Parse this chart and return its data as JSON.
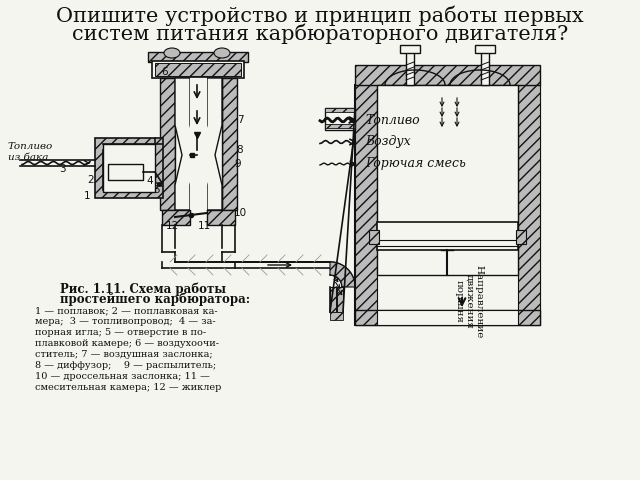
{
  "title_line1": "Опишите устройство и принцип работы первых",
  "title_line2": "систем питания карбюраторного двигателя?",
  "title_fontsize": 15,
  "title_color": "#111111",
  "bg_color": "#f5f5f0",
  "legend_fuel": "Топливо",
  "legend_air": "Воздух",
  "legend_mix": "Горючая смесь",
  "text_fuel_from_tank": "Топливо\nиз бака",
  "fig_caption_bold": "Рис. 1.11. Схема работы",
  "fig_caption_bold2": "простейшего карбюратора:",
  "fig_caption_text1": "1 — поплавок; 2 — поплавковая ка-",
  "fig_caption_text2": "мера;  3 — топливопровод;  4 — за-",
  "fig_caption_text3": "порная игла; 5 — отверстие в по-",
  "fig_caption_text4": "плавковой камере; 6 — воздухоочи-",
  "fig_caption_text5": "ститель; 7 — воздушная заслонка;",
  "fig_caption_text6": "8 — диффузор;    9 — распылитель;",
  "fig_caption_text7": "10 — дроссельная заслонка; 11 —",
  "fig_caption_text8": "смесительная камера; 12 — жиклер",
  "diagram_color": "#111111",
  "hatch_color": "#888888"
}
